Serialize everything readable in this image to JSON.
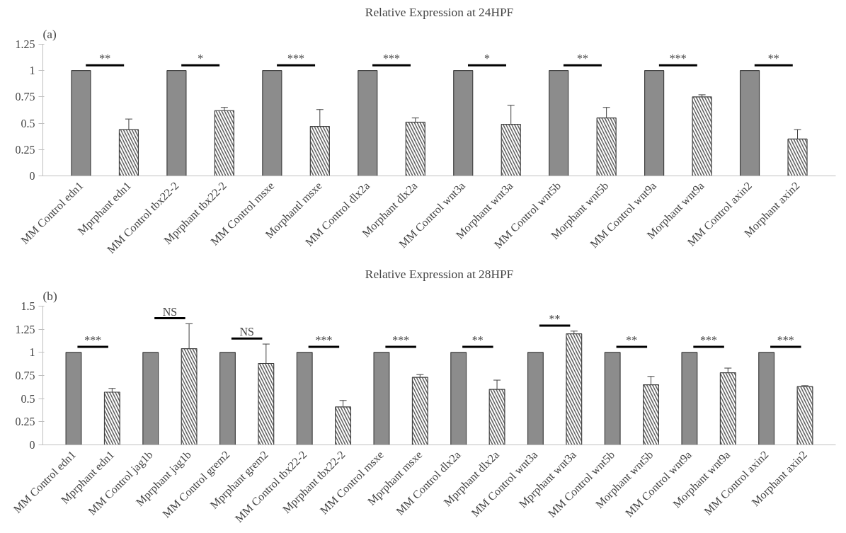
{
  "chart_data": [
    {
      "type": "bar",
      "title": "Relative Expression at 24HPF",
      "categories": [
        "MM Control edn1",
        "Mprphant edn1",
        "MM Control tbx22-2",
        "Mprphant tbx22-2",
        "MM Control msxe",
        "Morphantl msxe",
        "MM Control dlx2a",
        "Morphant dlx2a",
        "MM Control wnt3a",
        "Morphant wnt3a",
        "MM Control wnt5b",
        "Morphant wnt5b",
        "MM Control wnt9a",
        "Morphant wnt9a",
        "MM Control axin2",
        "Morphant axin2"
      ],
      "series": [
        {
          "color": "#8c8c8c",
          "values": [
            1,
            null,
            1,
            null,
            1,
            null,
            1,
            null,
            1,
            null,
            1,
            null,
            1,
            null,
            1,
            null
          ]
        },
        {
          "color": "#ffffff",
          "values": [
            null,
            0.44,
            null,
            0.62,
            null,
            0.47,
            null,
            0.51,
            null,
            0.49,
            null,
            0.55,
            null,
            0.75,
            null,
            0.35
          ],
          "errors": [
            null,
            [
              0.44,
              0.54
            ],
            null,
            [
              0.62,
              0.65
            ],
            null,
            [
              0.47,
              0.63
            ],
            null,
            [
              0.51,
              0.55
            ],
            null,
            [
              0.49,
              0.67
            ],
            null,
            [
              0.55,
              0.65
            ],
            null,
            [
              0.75,
              0.77
            ],
            null,
            [
              0.35,
              0.44
            ]
          ]
        }
      ],
      "ylim": [
        0,
        1.25
      ],
      "yticks": [
        0,
        0.25,
        0.5,
        0.75,
        1,
        1.25
      ],
      "annotations": [
        "(a)",
        "**",
        "*",
        "***",
        "***",
        "*",
        "**",
        "***",
        "**"
      ]
    },
    {
      "type": "bar",
      "title": "Relative Expression at 28HPF",
      "categories": [
        "MM Control edn1",
        "Mprphant edn1",
        "MM Control jag1b",
        "Mprphant jag1b",
        "MM Control grem2",
        "Mprphant grem2",
        "MM Control tbx22-2",
        "Mprphant tbx22-2",
        "MM Control msxe",
        "Mprphant msxe",
        "MM Control dlx2a",
        "Mprphant dlx2a",
        "MM Control wnt3a",
        "Mprphant wnt3a",
        "MM Control wnt5b",
        "Morphant wnt5b",
        "MM Control wnt9a",
        "Morphant wnt9a",
        "MM Control axin2",
        "Morphant axin2"
      ],
      "series": [
        {
          "color": "#8c8c8c",
          "values": [
            1,
            null,
            1,
            null,
            1,
            null,
            1,
            null,
            1,
            null,
            1,
            null,
            1,
            null,
            1,
            null,
            1,
            null,
            1,
            null
          ]
        },
        {
          "color": "#ffffff",
          "values": [
            null,
            0.57,
            null,
            1.04,
            null,
            0.88,
            null,
            0.41,
            null,
            0.73,
            null,
            0.6,
            null,
            1.2,
            null,
            0.65,
            null,
            0.78,
            null,
            0.63
          ],
          "errors": [
            null,
            [
              0.57,
              0.61
            ],
            null,
            [
              1.04,
              1.31
            ],
            null,
            [
              0.88,
              1.09
            ],
            null,
            [
              0.41,
              0.48
            ],
            null,
            [
              0.73,
              0.76
            ],
            null,
            [
              0.6,
              0.7
            ],
            null,
            [
              1.2,
              1.23
            ],
            null,
            [
              0.65,
              0.74
            ],
            null,
            [
              0.78,
              0.83
            ],
            null,
            [
              0.63,
              0.64
            ]
          ]
        }
      ],
      "ylim": [
        0,
        1.5
      ],
      "yticks": [
        0,
        0.25,
        0.5,
        0.75,
        1,
        1.25,
        1.5
      ],
      "annotations": [
        "(b)",
        "***",
        "NS",
        "NS",
        "***",
        "***",
        "**",
        "**",
        "**",
        "***",
        "***"
      ]
    }
  ]
}
